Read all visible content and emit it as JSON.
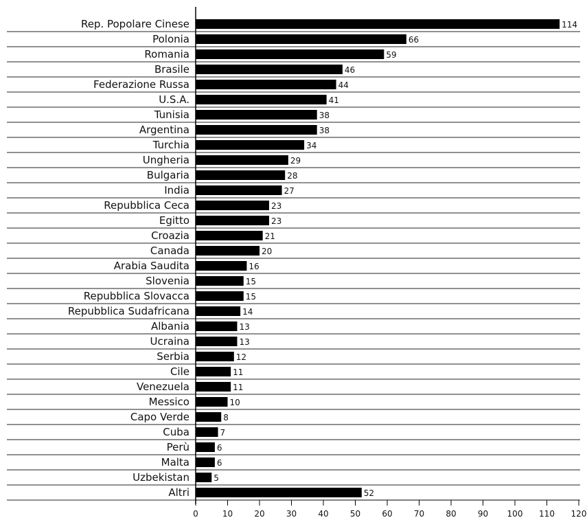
{
  "chart_data": {
    "type": "bar",
    "orientation": "horizontal",
    "categories": [
      "Rep. Popolare Cinese",
      "Polonia",
      "Romania",
      "Brasile",
      "Federazione Russa",
      "U.S.A.",
      "Tunisia",
      "Argentina",
      "Turchia",
      "Ungheria",
      "Bulgaria",
      "India",
      "Repubblica Ceca",
      "Egitto",
      "Croazia",
      "Canada",
      "Arabia Saudita",
      "Slovenia",
      "Repubblica Slovacca",
      "Repubblica Sudafricana",
      "Albania",
      "Ucraina",
      "Serbia",
      "Cile",
      "Venezuela",
      "Messico",
      "Capo Verde",
      "Cuba",
      "Perù",
      "Malta",
      "Uzbekistan",
      "Altri"
    ],
    "values": [
      114,
      66,
      59,
      46,
      44,
      41,
      38,
      38,
      34,
      29,
      28,
      27,
      23,
      23,
      21,
      20,
      16,
      15,
      15,
      14,
      13,
      13,
      12,
      11,
      11,
      10,
      8,
      7,
      6,
      6,
      5,
      52
    ],
    "value_labels": [
      "114",
      "66",
      "59",
      "46",
      "44",
      "41",
      "38",
      "38",
      "34",
      "29",
      "28",
      "27",
      "23",
      "23",
      "21",
      "20",
      "16",
      "15",
      "15",
      "14",
      "13",
      "13",
      "12",
      "11",
      "11",
      "10",
      "8",
      "7",
      "6",
      "6",
      "5",
      "52"
    ],
    "xlim": [
      0,
      120
    ],
    "x_ticks": [
      0,
      10,
      20,
      30,
      40,
      50,
      60,
      70,
      80,
      90,
      100,
      110,
      120
    ],
    "x_tick_labels": [
      "0",
      "10",
      "20",
      "30",
      "40",
      "50",
      "60",
      "70",
      "80",
      "90",
      "100",
      "110",
      "120"
    ],
    "bar_color": "#000000",
    "grid": "horizontal row separators"
  }
}
